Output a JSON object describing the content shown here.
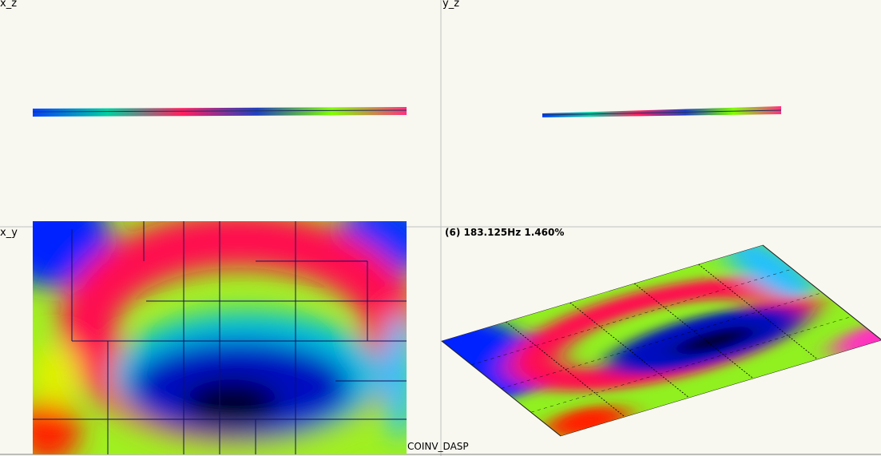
{
  "panels": [
    {
      "label": "x_z"
    },
    {
      "label": "y_z"
    },
    {
      "label": "x_y"
    },
    {
      "label": "(6) 183.125Hz 1.460%"
    }
  ],
  "footer": "COINV_DASP"
}
